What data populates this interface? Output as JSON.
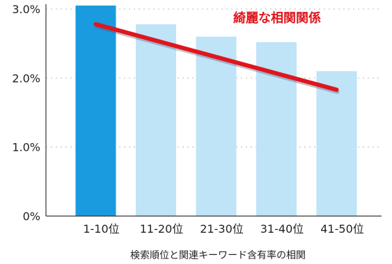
{
  "chart_data": {
    "type": "bar",
    "categories": [
      "1-10位",
      "11-20位",
      "21-30位",
      "31-40位",
      "41-50位"
    ],
    "values": [
      3.05,
      2.78,
      2.6,
      2.52,
      2.1
    ],
    "y_ticks": [
      "0%",
      "1.0%",
      "2.0%",
      "3.0%"
    ],
    "y_tick_values": [
      0,
      1.0,
      2.0,
      3.0
    ],
    "ylim": [
      0,
      3.05
    ],
    "xlabel": "検索順位と関連キーワード含有率の相関",
    "ylabel": "",
    "grid": true,
    "trend_line": {
      "start": 2.78,
      "end": 1.83
    },
    "annotation": "綺麗な相関関係",
    "colors": {
      "highlight_bar": "#1a9be0",
      "bar": "#bfe3f7",
      "trend_line": "#e0161c",
      "annotation": "#e0161c",
      "grid": "#b8b8b8",
      "axis": "#333333"
    }
  }
}
